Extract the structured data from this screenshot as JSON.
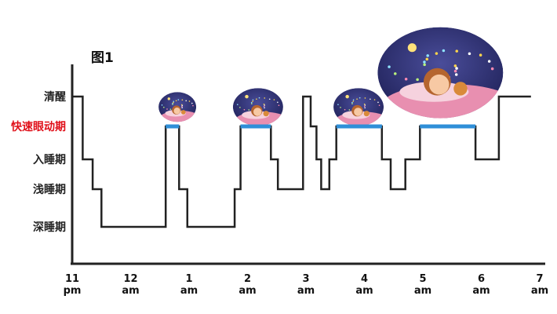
{
  "chart_data": {
    "type": "line",
    "title": "图1",
    "y_categories": [
      "清醒",
      "快速眼动期",
      "入睡期",
      "浅睡期",
      "深睡期"
    ],
    "y_highlight": "快速眼动期",
    "x_ticks": [
      {
        "hour": 0,
        "line1": "11",
        "line2": "pm"
      },
      {
        "hour": 1,
        "line1": "12",
        "line2": "am"
      },
      {
        "hour": 2,
        "line1": "1",
        "line2": "am"
      },
      {
        "hour": 3,
        "line1": "2",
        "line2": "am"
      },
      {
        "hour": 4,
        "line1": "3",
        "line2": "am"
      },
      {
        "hour": 5,
        "line1": "4",
        "line2": "am"
      },
      {
        "hour": 6,
        "line1": "5",
        "line2": "am"
      },
      {
        "hour": 7,
        "line1": "6",
        "line2": "am"
      },
      {
        "hour": 8,
        "line1": "7",
        "line2": "am"
      }
    ],
    "series": [
      {
        "color": "#222222",
        "rem_color": "#2f8fd8",
        "points": [
          [
            0.0,
            0
          ],
          [
            0.18,
            0
          ],
          [
            0.18,
            2
          ],
          [
            0.35,
            2
          ],
          [
            0.35,
            3
          ],
          [
            0.5,
            3
          ],
          [
            0.5,
            4
          ],
          [
            1.6,
            4
          ],
          [
            1.6,
            1
          ],
          [
            1.83,
            1
          ],
          [
            1.83,
            3
          ],
          [
            1.97,
            3
          ],
          [
            1.97,
            4
          ],
          [
            2.78,
            4
          ],
          [
            2.78,
            3
          ],
          [
            2.88,
            3
          ],
          [
            2.88,
            1
          ],
          [
            3.4,
            1
          ],
          [
            3.4,
            2
          ],
          [
            3.52,
            2
          ],
          [
            3.52,
            3
          ],
          [
            3.95,
            3
          ],
          [
            3.95,
            0
          ],
          [
            4.08,
            0
          ],
          [
            4.08,
            1
          ],
          [
            4.18,
            1
          ],
          [
            4.18,
            2
          ],
          [
            4.26,
            2
          ],
          [
            4.26,
            3
          ],
          [
            4.4,
            3
          ],
          [
            4.4,
            2
          ],
          [
            4.52,
            2
          ],
          [
            4.52,
            1
          ],
          [
            5.3,
            1
          ],
          [
            5.3,
            2
          ],
          [
            5.45,
            2
          ],
          [
            5.45,
            3
          ],
          [
            5.7,
            3
          ],
          [
            5.7,
            2
          ],
          [
            5.95,
            2
          ],
          [
            5.95,
            1
          ],
          [
            6.9,
            1
          ],
          [
            6.9,
            2
          ],
          [
            7.3,
            2
          ],
          [
            7.3,
            0
          ],
          [
            7.85,
            0
          ]
        ],
        "rem_periods": [
          [
            1.6,
            1.83
          ],
          [
            2.88,
            3.4
          ],
          [
            4.52,
            5.3
          ],
          [
            5.95,
            6.9
          ]
        ]
      }
    ],
    "decorations": [
      {
        "type": "sleeping-child-bubble",
        "hour": 1.8,
        "level": 0.35,
        "rx": 24,
        "ry": 19
      },
      {
        "type": "sleeping-child-bubble",
        "hour": 3.18,
        "level": 0.35,
        "rx": 32,
        "ry": 24
      },
      {
        "type": "sleeping-child-bubble",
        "hour": 4.9,
        "level": 0.35,
        "rx": 32,
        "ry": 24
      },
      {
        "type": "sleeping-child-bubble",
        "hour": 6.3,
        "level": -0.8,
        "rx": 80,
        "ry": 58
      }
    ],
    "grid": false,
    "legend": "none"
  }
}
